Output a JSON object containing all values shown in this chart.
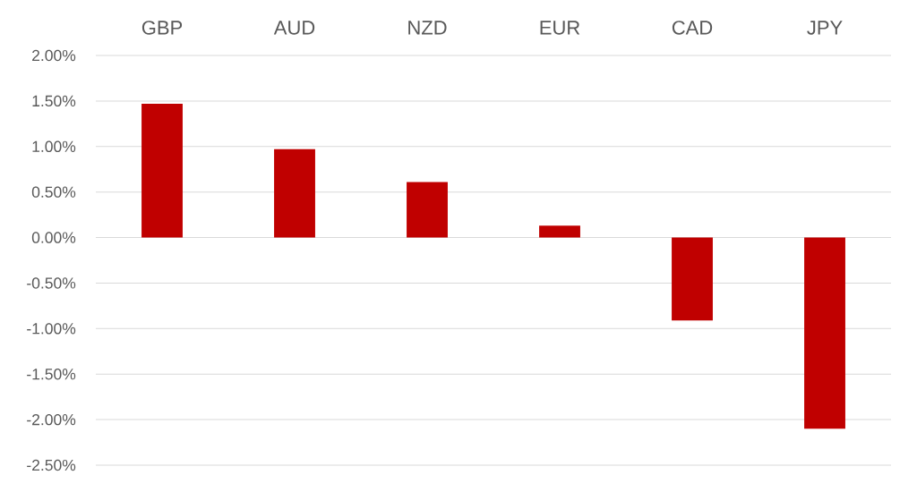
{
  "chart_data": {
    "type": "bar",
    "categories": [
      "GBP",
      "AUD",
      "NZD",
      "EUR",
      "CAD",
      "JPY"
    ],
    "values": [
      1.47,
      0.97,
      0.61,
      0.13,
      -0.91,
      -2.1
    ],
    "color": "#c00000",
    "ylim": [
      -2.5,
      2.0
    ],
    "yticks": [
      {
        "value": 2,
        "label": "2.00%"
      },
      {
        "value": 1.5,
        "label": "1.50%"
      },
      {
        "value": 1,
        "label": "1.00%"
      },
      {
        "value": 0.5,
        "label": "0.50%"
      },
      {
        "value": 0,
        "label": "0.00%"
      },
      {
        "value": -0.5,
        "label": "-0.50%"
      },
      {
        "value": -1,
        "label": "-1.00%"
      },
      {
        "value": -1.5,
        "label": "-1.50%"
      },
      {
        "value": -2,
        "label": "-2.00%"
      },
      {
        "value": -2.5,
        "label": "-2.50%"
      }
    ],
    "grid": "y"
  }
}
